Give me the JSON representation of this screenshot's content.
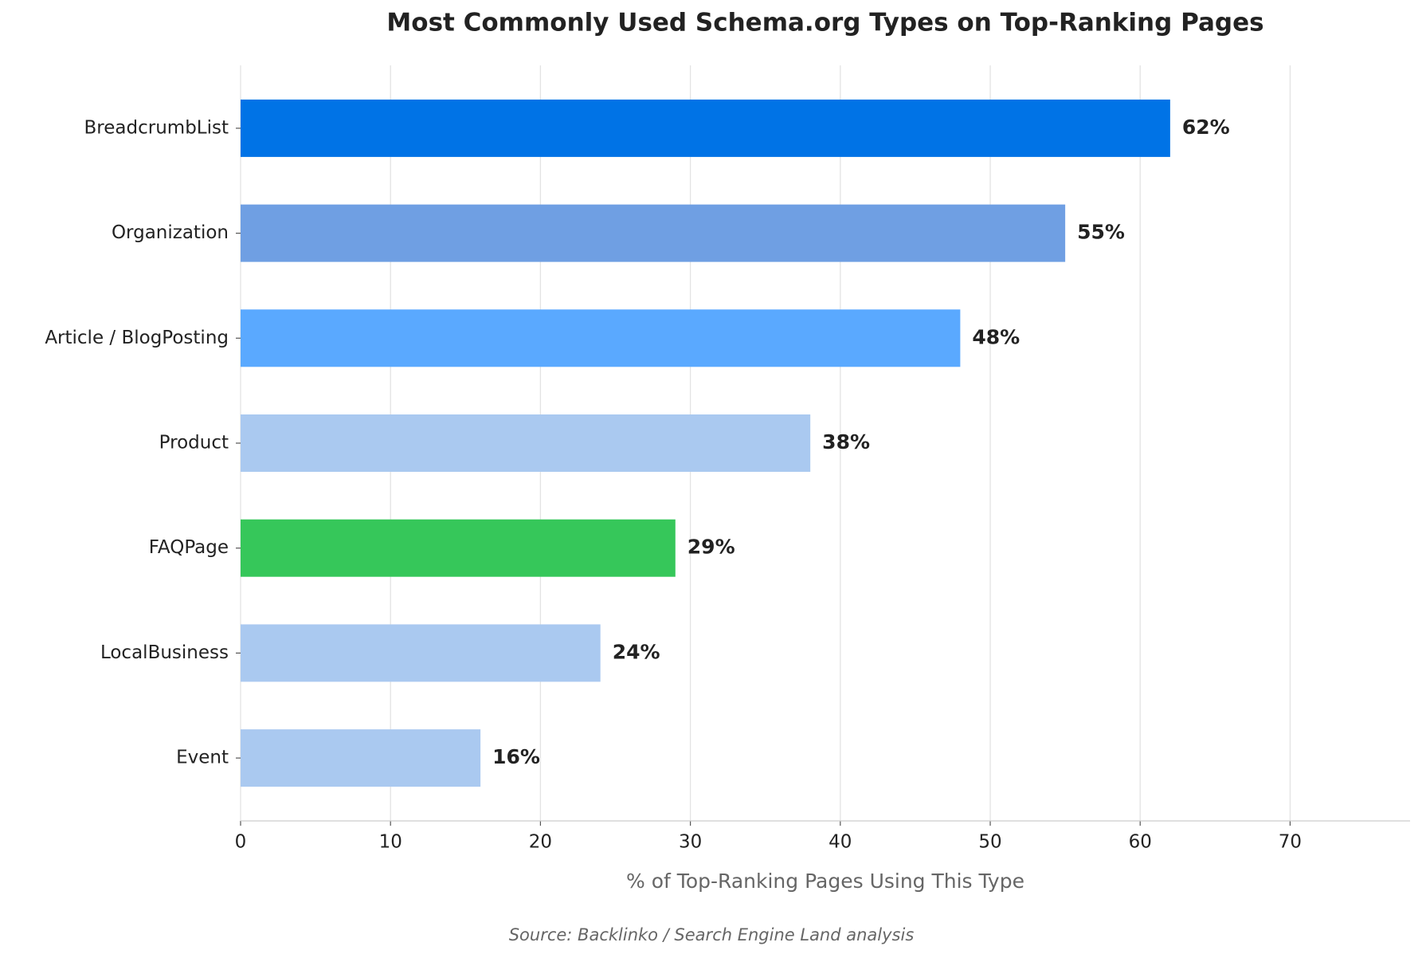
{
  "chart_data": {
    "type": "hbar",
    "title": "Most Commonly Used Schema.org Types on Top-Ranking Pages",
    "x_label": "% of Top-Ranking Pages Using This Type",
    "source": "Source: Backlinko / Search Engine Land analysis",
    "categories": [
      "BreadcrumbList",
      "Organization",
      "Article / BlogPosting",
      "Product",
      "FAQPage",
      "LocalBusiness",
      "Event"
    ],
    "values": [
      62,
      55,
      48,
      38,
      29,
      24,
      16
    ],
    "value_labels": [
      "62%",
      "55%",
      "48%",
      "38%",
      "29%",
      "24%",
      "16%"
    ],
    "colors": [
      "#0073e6",
      "#6f9fe3",
      "#5aa9ff",
      "#aac9f0",
      "#36c75a",
      "#aac9f0",
      "#aac9f0"
    ],
    "xlim": [
      0,
      78
    ],
    "xticks": [
      0,
      10,
      20,
      30,
      40,
      50,
      60,
      70
    ],
    "grid": true
  }
}
